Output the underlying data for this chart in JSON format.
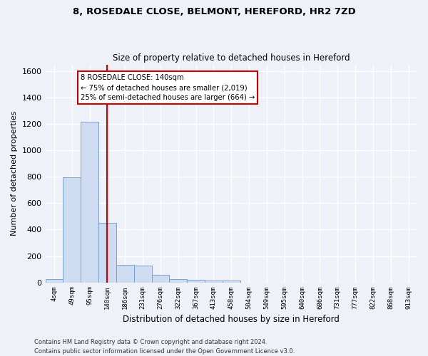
{
  "title_line1": "8, ROSEDALE CLOSE, BELMONT, HEREFORD, HR2 7ZD",
  "title_line2": "Size of property relative to detached houses in Hereford",
  "xlabel": "Distribution of detached houses by size in Hereford",
  "ylabel": "Number of detached properties",
  "categories": [
    "4sqm",
    "49sqm",
    "95sqm",
    "140sqm",
    "186sqm",
    "231sqm",
    "276sqm",
    "322sqm",
    "367sqm",
    "413sqm",
    "458sqm",
    "504sqm",
    "549sqm",
    "595sqm",
    "640sqm",
    "686sqm",
    "731sqm",
    "777sqm",
    "822sqm",
    "868sqm",
    "913sqm"
  ],
  "values": [
    25,
    795,
    1220,
    450,
    130,
    125,
    55,
    25,
    20,
    15,
    15,
    0,
    0,
    0,
    0,
    0,
    0,
    0,
    0,
    0,
    0
  ],
  "bar_color": "#cddcf0",
  "bar_edge_color": "#7ba3d0",
  "ylim": [
    0,
    1650
  ],
  "yticks": [
    0,
    200,
    400,
    600,
    800,
    1000,
    1200,
    1400,
    1600
  ],
  "red_line_index": 3,
  "annotation_text": "8 ROSEDALE CLOSE: 140sqm\n← 75% of detached houses are smaller (2,019)\n25% of semi-detached houses are larger (664) →",
  "annotation_box_color": "#ffffff",
  "annotation_box_edge_color": "#cc0000",
  "footer_line1": "Contains HM Land Registry data © Crown copyright and database right 2024.",
  "footer_line2": "Contains public sector information licensed under the Open Government Licence v3.0.",
  "background_color": "#eef2f8",
  "grid_color": "#ffffff"
}
